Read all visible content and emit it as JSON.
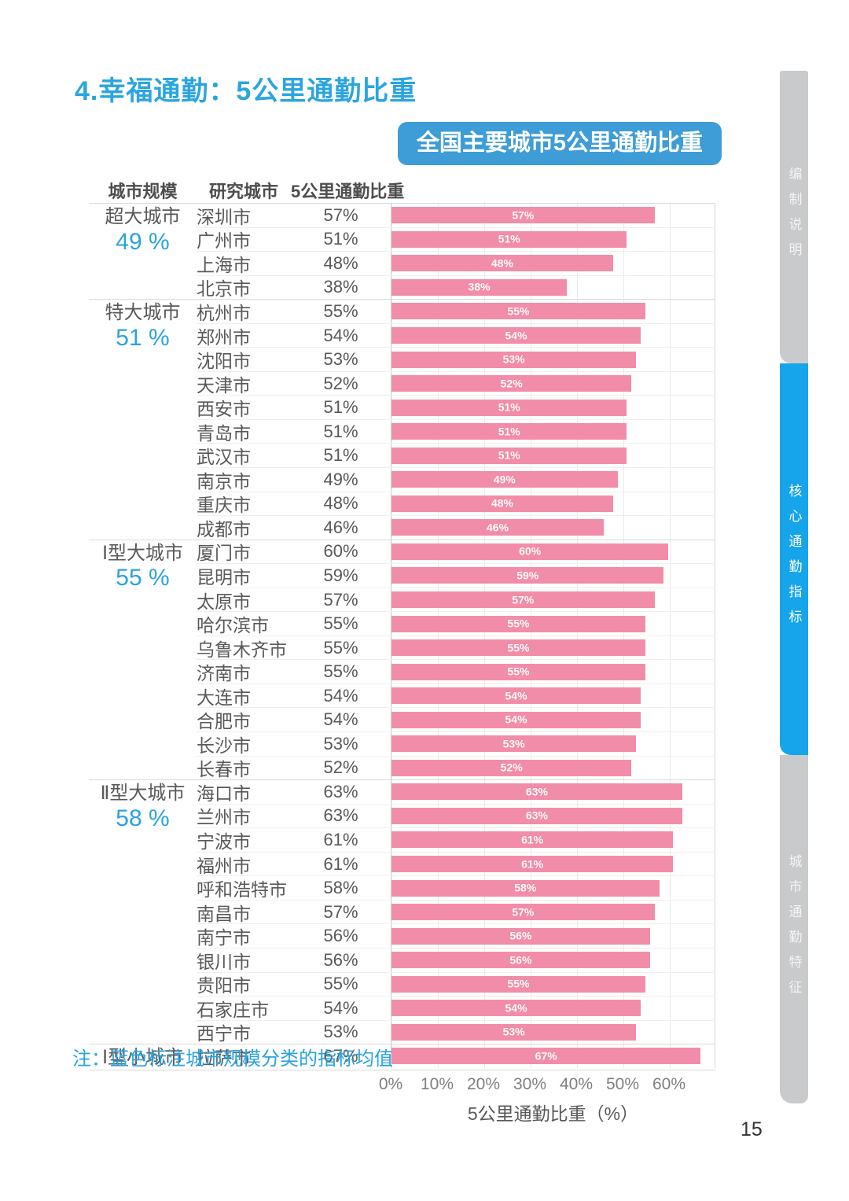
{
  "page": {
    "title": "4.幸福通勤：5公里通勤比重",
    "note": "注：蓝色标注城市规模分类的指标均值",
    "page_number": "15"
  },
  "table": {
    "headers": [
      "城市规模",
      "研究城市",
      "5公里通勤比重"
    ]
  },
  "sidebar": {
    "items": [
      {
        "label": "编制说明",
        "active": false
      },
      {
        "label": "核心通勤指标",
        "active": true
      },
      {
        "label": "城市通勤特征",
        "active": false
      }
    ]
  },
  "colors": {
    "accent_blue": "#29A3E0",
    "badge_blue": "#3E9DD6",
    "sidebar_blue": "#16A5EB",
    "sidebar_gray": "#C9CACB",
    "bar_pink": "#F18DA8",
    "text_gray": "#595959"
  },
  "chart_data": {
    "type": "bar",
    "orientation": "horizontal",
    "title": "全国主要城市5公里通勤比重",
    "xlabel": "5公里通勤比重（%）",
    "xlim": [
      0,
      70
    ],
    "x_ticks": [
      "0%",
      "10%",
      "20%",
      "30%",
      "40%",
      "50%",
      "60%"
    ],
    "grid": true,
    "groups": [
      {
        "name": "超大城市",
        "average": "49 %",
        "cities": [
          {
            "city": "深圳市",
            "value": 57,
            "label": "57%"
          },
          {
            "city": "广州市",
            "value": 51,
            "label": "51%"
          },
          {
            "city": "上海市",
            "value": 48,
            "label": "48%"
          },
          {
            "city": "北京市",
            "value": 38,
            "label": "38%"
          }
        ]
      },
      {
        "name": "特大城市",
        "average": "51 %",
        "cities": [
          {
            "city": "杭州市",
            "value": 55,
            "label": "55%"
          },
          {
            "city": "郑州市",
            "value": 54,
            "label": "54%"
          },
          {
            "city": "沈阳市",
            "value": 53,
            "label": "53%"
          },
          {
            "city": "天津市",
            "value": 52,
            "label": "52%"
          },
          {
            "city": "西安市",
            "value": 51,
            "label": "51%"
          },
          {
            "city": "青岛市",
            "value": 51,
            "label": "51%"
          },
          {
            "city": "武汉市",
            "value": 51,
            "label": "51%"
          },
          {
            "city": "南京市",
            "value": 49,
            "label": "49%"
          },
          {
            "city": "重庆市",
            "value": 48,
            "label": "48%"
          },
          {
            "city": "成都市",
            "value": 46,
            "label": "46%"
          }
        ]
      },
      {
        "name": "Ⅰ型大城市",
        "average": "55 %",
        "cities": [
          {
            "city": "厦门市",
            "value": 60,
            "label": "60%"
          },
          {
            "city": "昆明市",
            "value": 59,
            "label": "59%"
          },
          {
            "city": "太原市",
            "value": 57,
            "label": "57%"
          },
          {
            "city": "哈尔滨市",
            "value": 55,
            "label": "55%"
          },
          {
            "city": "乌鲁木齐市",
            "value": 55,
            "label": "55%"
          },
          {
            "city": "济南市",
            "value": 55,
            "label": "55%"
          },
          {
            "city": "大连市",
            "value": 54,
            "label": "54%"
          },
          {
            "city": "合肥市",
            "value": 54,
            "label": "54%"
          },
          {
            "city": "长沙市",
            "value": 53,
            "label": "53%"
          },
          {
            "city": "长春市",
            "value": 52,
            "label": "52%"
          }
        ]
      },
      {
        "name": "Ⅱ型大城市",
        "average": "58 %",
        "cities": [
          {
            "city": "海口市",
            "value": 63,
            "label": "63%"
          },
          {
            "city": "兰州市",
            "value": 63,
            "label": "63%"
          },
          {
            "city": "宁波市",
            "value": 61,
            "label": "61%"
          },
          {
            "city": "福州市",
            "value": 61,
            "label": "61%"
          },
          {
            "city": "呼和浩特市",
            "value": 58,
            "label": "58%"
          },
          {
            "city": "南昌市",
            "value": 57,
            "label": "57%"
          },
          {
            "city": "南宁市",
            "value": 56,
            "label": "56%"
          },
          {
            "city": "银川市",
            "value": 56,
            "label": "56%"
          },
          {
            "city": "贵阳市",
            "value": 55,
            "label": "55%"
          },
          {
            "city": "石家庄市",
            "value": 54,
            "label": "54%"
          },
          {
            "city": "西宁市",
            "value": 53,
            "label": "53%"
          }
        ]
      },
      {
        "name": "Ⅰ型小城市",
        "average": "",
        "cities": [
          {
            "city": "拉萨市",
            "value": 67,
            "label": "67%"
          }
        ]
      }
    ]
  }
}
